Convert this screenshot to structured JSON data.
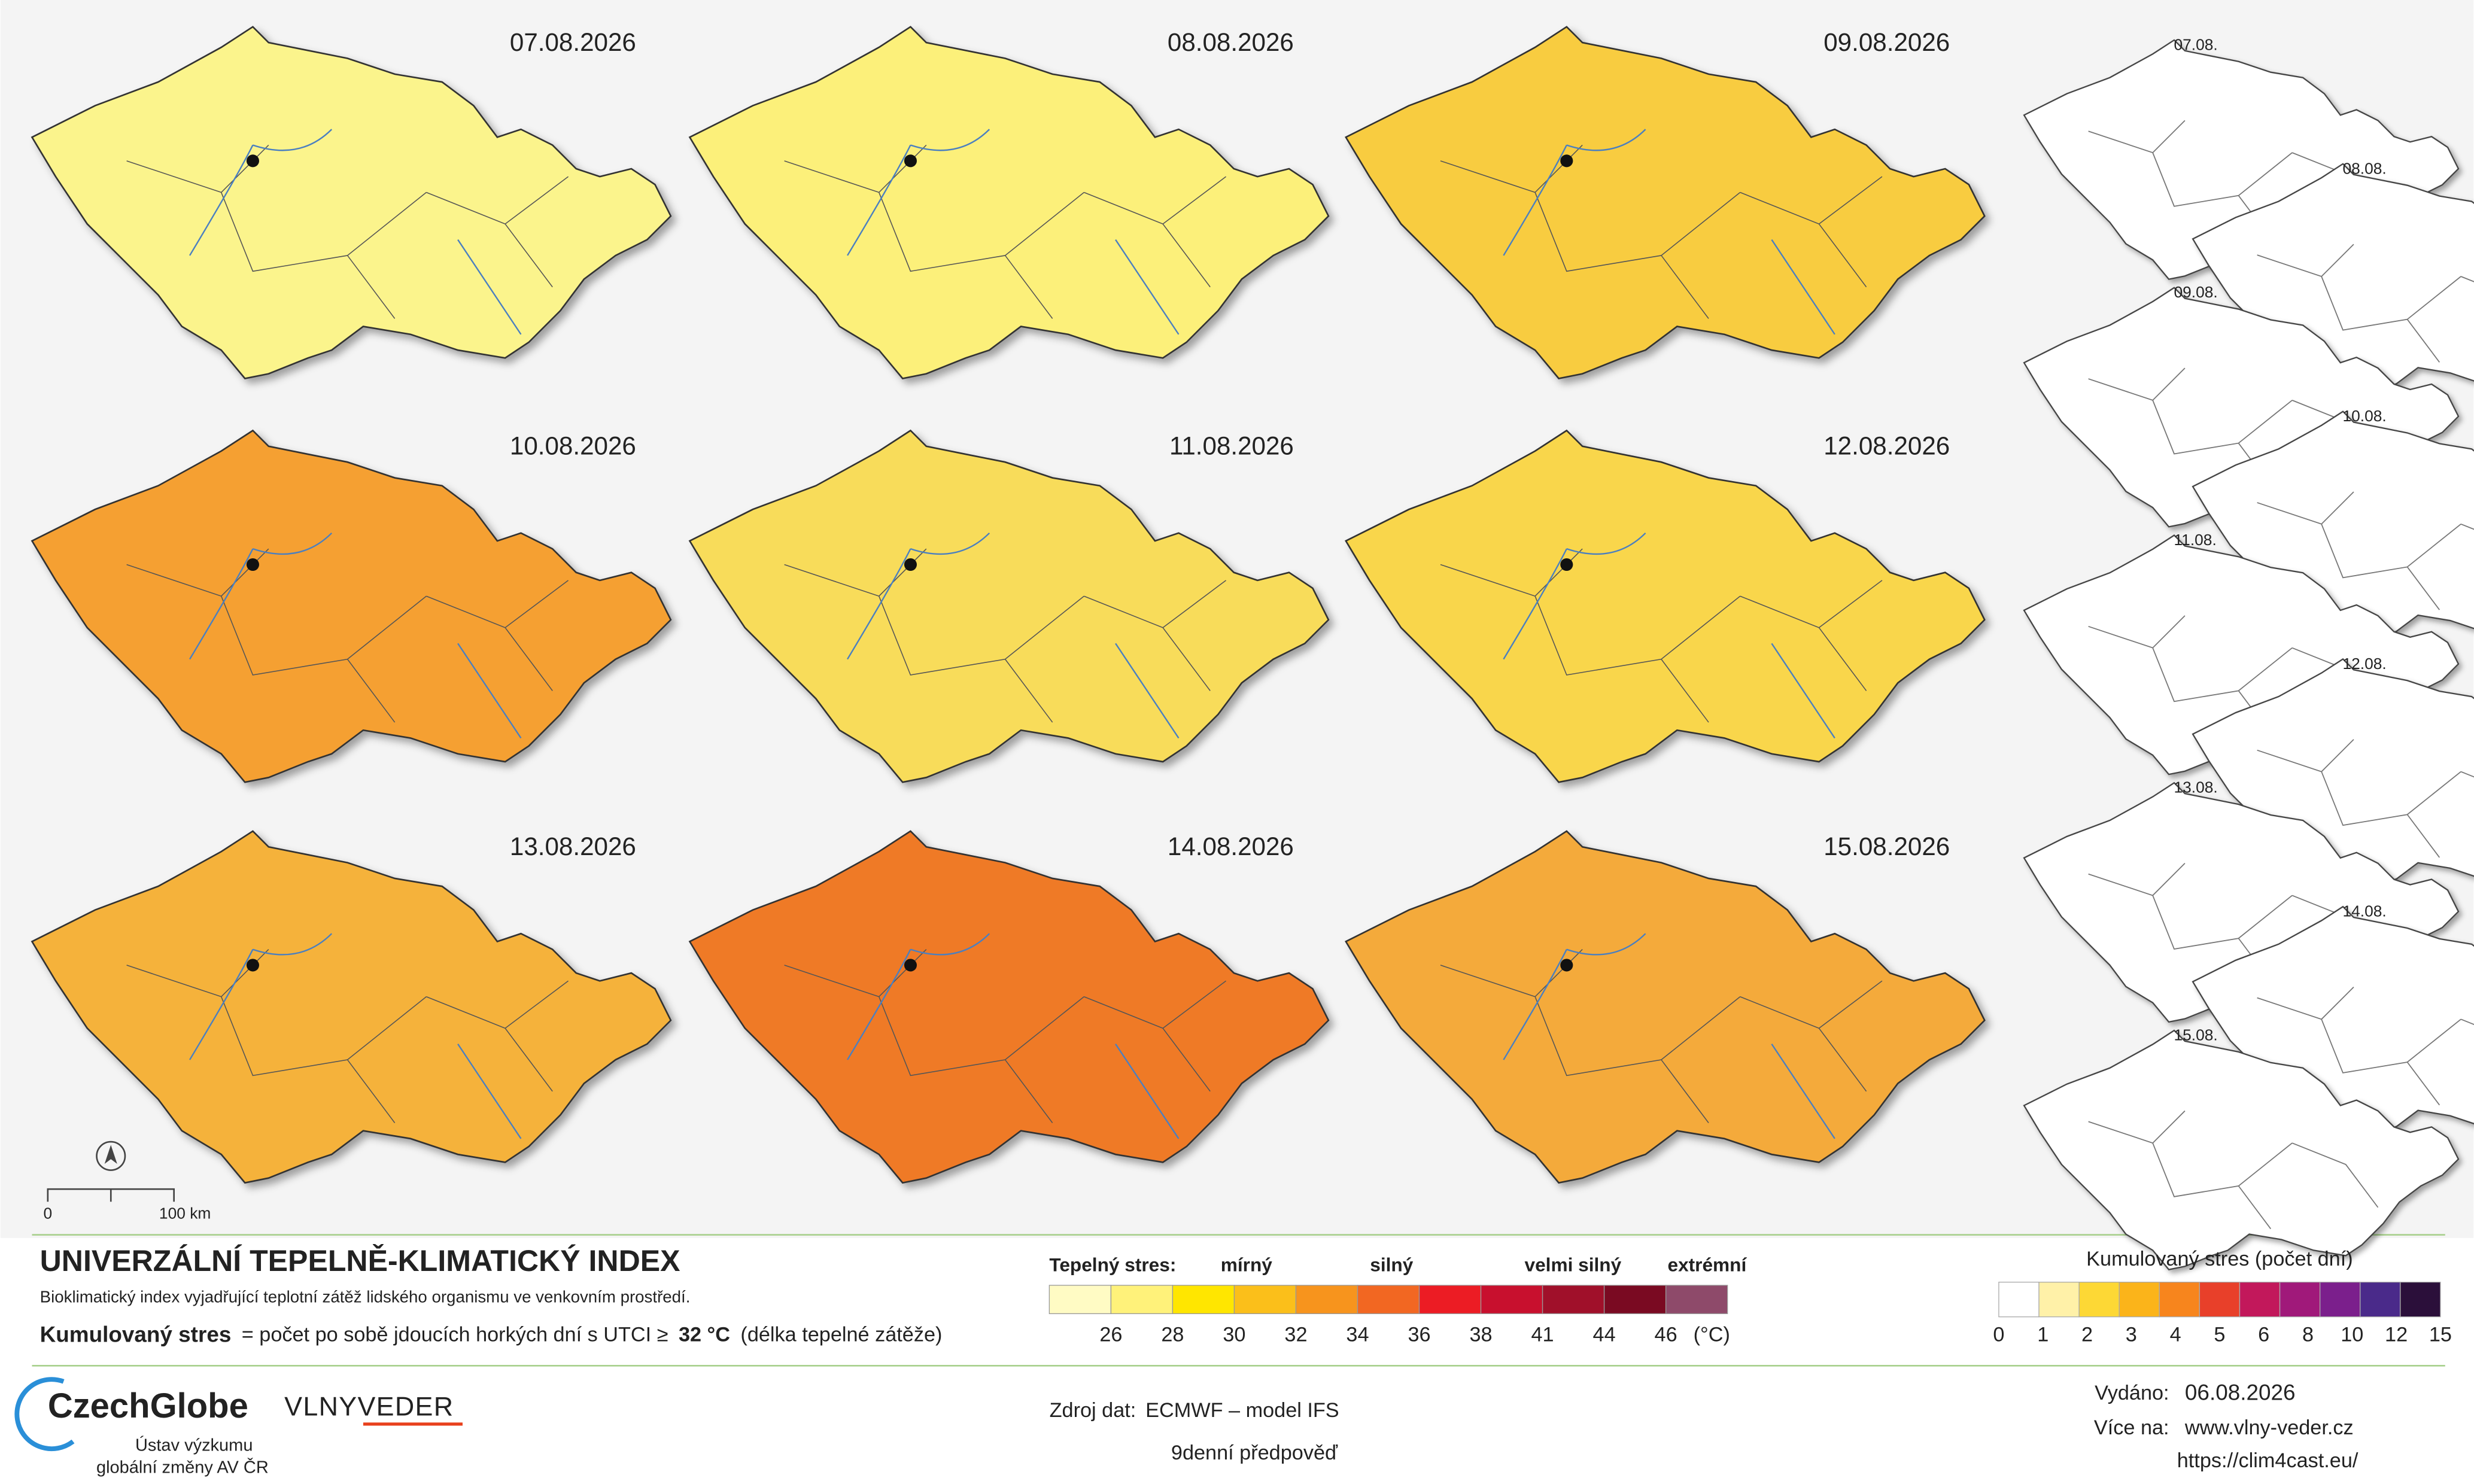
{
  "maps": [
    {
      "date": "07.08.2026",
      "color": "#fbf48c"
    },
    {
      "date": "08.08.2026",
      "color": "#fcf07a"
    },
    {
      "date": "09.08.2026",
      "color": "#f8cc40"
    },
    {
      "date": "10.08.2026",
      "color": "#f5a030"
    },
    {
      "date": "11.08.2026",
      "color": "#f8dc5a"
    },
    {
      "date": "12.08.2026",
      "color": "#f9d64c"
    },
    {
      "date": "13.08.2026",
      "color": "#f5b23a"
    },
    {
      "date": "14.08.2026",
      "color": "#ef7a28"
    },
    {
      "date": "15.08.2026",
      "color": "#f4aa3a"
    }
  ],
  "small_maps": [
    "07.08.",
    "08.08.",
    "09.08.",
    "10.08.",
    "11.08.",
    "12.08.",
    "13.08.",
    "14.08.",
    "15.08."
  ],
  "scale_bar": {
    "start": "0",
    "end": "100 km"
  },
  "title": "UNIVERZÁLNÍ TEPELNĚ-KLIMATICKÝ INDEX",
  "subtitle": "Bioklimatický index vyjadřující teplotní zátěž lidského organismu ve venkovním prostředí.",
  "definition": {
    "term": "Kumulovaný stres",
    "text": "= počet po sobě jdoucích horkých dní s UTCI ≥",
    "threshold": "32 °C",
    "note": "(délka tepelné zátěže)"
  },
  "stress_legend": {
    "title": "Tepelný stres:",
    "levels": [
      "mírný",
      "silný",
      "velmi silný",
      "extrémní"
    ],
    "colors": [
      "#fffbc4",
      "#fff27a",
      "#ffe600",
      "#fbbf1a",
      "#f7941d",
      "#f26722",
      "#ec1c24",
      "#c8102e",
      "#a0102a",
      "#7a0a22",
      "#8e4a6a"
    ],
    "ticks": [
      26,
      28,
      30,
      32,
      34,
      36,
      38,
      41,
      44,
      46
    ],
    "unit": "(°C)"
  },
  "cumulative_legend": {
    "title": "Kumulovaný stres (počet dní)",
    "colors": [
      "#ffffff",
      "#fff1a8",
      "#fdd835",
      "#fbb41a",
      "#f7851d",
      "#e8402a",
      "#c2185b",
      "#a0197a",
      "#7b1f8c",
      "#4a2a8a",
      "#2b0f3a"
    ],
    "ticks": [
      0,
      1,
      2,
      3,
      4,
      5,
      6,
      8,
      10,
      12,
      15
    ]
  },
  "logos": {
    "czechglobe": "CzechGlobe",
    "institute": [
      "Ústav výzkumu",
      "globální změny AV ČR"
    ],
    "vlnyveder": "VLNYVEDER"
  },
  "source": {
    "label": "Zdroj dat:",
    "value": "ECMWF – model IFS",
    "forecast": "9denní předpověď"
  },
  "issued": {
    "label": "Vydáno:",
    "date": "06.08.2026",
    "more_label": "Více na:",
    "links": [
      "www.vlny-veder.cz",
      "https://clim4cast.eu/"
    ]
  }
}
